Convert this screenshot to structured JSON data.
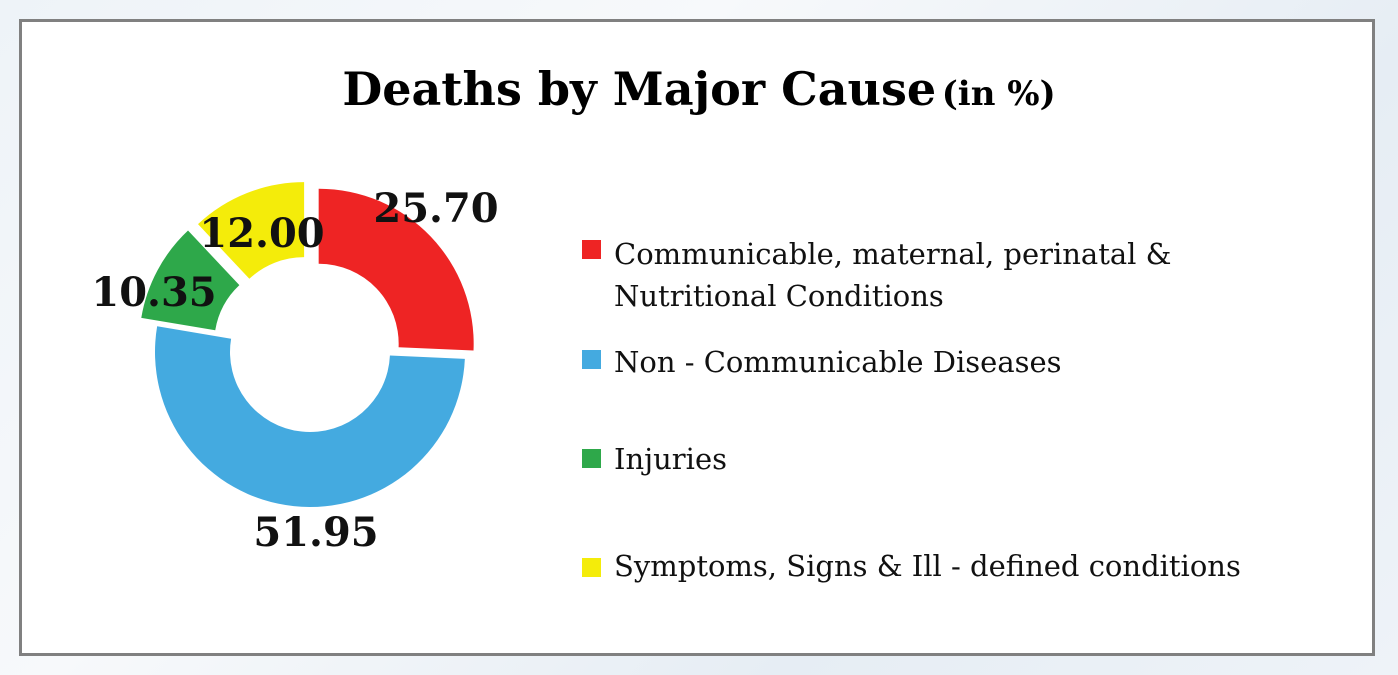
{
  "title": {
    "main": "Deaths by Major Cause",
    "unit": "(in %)"
  },
  "chart_data": {
    "type": "pie",
    "variant": "donut",
    "title": "Deaths by Major Cause (in %)",
    "categories": [
      "Communicable, maternal, perinatal & Nutritional Conditions",
      "Non - Communicable Diseases",
      "Injuries",
      "Symptoms, Signs & Ill - defined conditions"
    ],
    "values": [
      25.7,
      51.95,
      10.35,
      12.0
    ],
    "labels": [
      "25.70",
      "51.95",
      "10.35",
      "12.00"
    ],
    "colors": [
      "#ee2424",
      "#44aae0",
      "#2ea84a",
      "#f4ec0a"
    ],
    "legend_position": "right"
  },
  "legend": [
    {
      "lines": [
        "Communicable, maternal, perinatal &",
        "Nutritional Conditions"
      ],
      "color": "#ee2424"
    },
    {
      "lines": [
        "Non - Communicable Diseases"
      ],
      "color": "#44aae0"
    },
    {
      "lines": [
        "Injuries"
      ],
      "color": "#2ea84a"
    },
    {
      "lines": [
        "Symptoms, Signs & Ill - defined conditions"
      ],
      "color": "#f4ec0a"
    }
  ]
}
